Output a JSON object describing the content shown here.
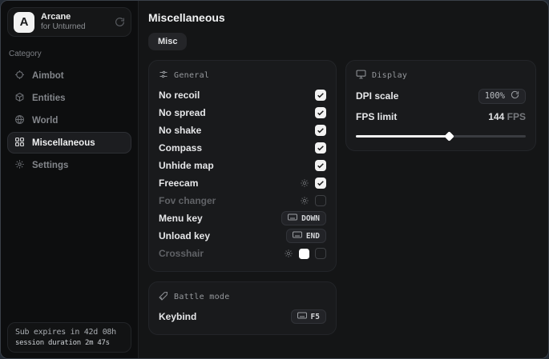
{
  "app": {
    "name": "Arcane",
    "subtitle": "for Unturned",
    "logo_letter": "A"
  },
  "sidebar": {
    "category_label": "Category",
    "items": [
      {
        "label": "Aimbot",
        "icon": "crosshair-icon",
        "active": false
      },
      {
        "label": "Entities",
        "icon": "entities-icon",
        "active": false
      },
      {
        "label": "World",
        "icon": "globe-icon",
        "active": false
      },
      {
        "label": "Miscellaneous",
        "icon": "grid-icon",
        "active": true
      },
      {
        "label": "Settings",
        "icon": "gear-icon",
        "active": false
      }
    ],
    "subscription": {
      "line1": "Sub expires in 42d 08h",
      "line2": "session duration 2m 47s"
    }
  },
  "main": {
    "title": "Miscellaneous",
    "tabs": [
      {
        "label": "Misc",
        "active": true
      }
    ],
    "panels": {
      "general": {
        "title": "General",
        "rows": [
          {
            "label": "No recoil",
            "type": "checkbox",
            "checked": true
          },
          {
            "label": "No spread",
            "type": "checkbox",
            "checked": true
          },
          {
            "label": "No shake",
            "type": "checkbox",
            "checked": true
          },
          {
            "label": "Compass",
            "type": "checkbox",
            "checked": true
          },
          {
            "label": "Unhide map",
            "type": "checkbox",
            "checked": true
          },
          {
            "label": "Freecam",
            "type": "checkbox-with-settings",
            "checked": true
          },
          {
            "label": "Fov changer",
            "type": "checkbox-with-settings",
            "checked": false,
            "disabled": true
          },
          {
            "label": "Menu key",
            "type": "keybind",
            "key": "DOWN"
          },
          {
            "label": "Unload key",
            "type": "keybind",
            "key": "END"
          },
          {
            "label": "Crosshair",
            "type": "color-checkbox-with-settings",
            "checked": false,
            "disabled": true,
            "swatch_color": "#ffffff"
          }
        ]
      },
      "battle": {
        "title": "Battle mode",
        "rows": [
          {
            "label": "Keybind",
            "type": "keybind",
            "key": "F5"
          }
        ]
      },
      "display": {
        "title": "Display",
        "dpi": {
          "label": "DPI scale",
          "value": "100%"
        },
        "fps": {
          "label": "FPS limit",
          "value": "144",
          "unit": "FPS",
          "slider_percent": 55
        }
      }
    }
  },
  "colors": {
    "window_bg": "#131415",
    "sidebar_bg": "#0d0e0f",
    "panel_bg": "#191a1c",
    "accent_checkbox": "#f2f2f2",
    "text_primary": "#e6e7e9",
    "text_dim": "#83868b"
  }
}
